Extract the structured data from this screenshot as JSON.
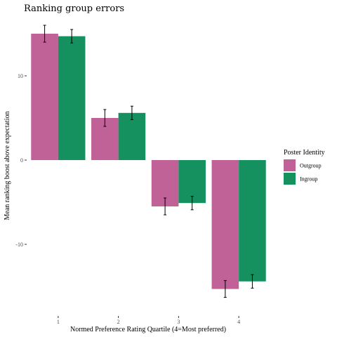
{
  "chart_data": {
    "type": "bar",
    "title": "Ranking group errors",
    "xlabel": "Normed Preference Rating Quartile (4=Most preferred)",
    "ylabel": "Mean ranking boost above expectation",
    "categories": [
      "1",
      "2",
      "3",
      "4"
    ],
    "y_ticks": [
      -10,
      0,
      10
    ],
    "y_tick_labels": [
      "-10",
      "0",
      "10"
    ],
    "ylim": [
      -18.5,
      16.5
    ],
    "grid": false,
    "legend": {
      "title": "Poster Identity",
      "position": "right"
    },
    "series": [
      {
        "name": "Outgroup",
        "color": "#C06197",
        "values": [
          15.0,
          5.0,
          -5.5,
          -15.3
        ],
        "errors": [
          1.0,
          1.0,
          1.0,
          1.0
        ]
      },
      {
        "name": "Ingroup",
        "color": "#15915F",
        "values": [
          14.7,
          5.6,
          -5.1,
          -14.4
        ],
        "errors": [
          0.8,
          0.8,
          0.8,
          0.8
        ]
      }
    ]
  }
}
